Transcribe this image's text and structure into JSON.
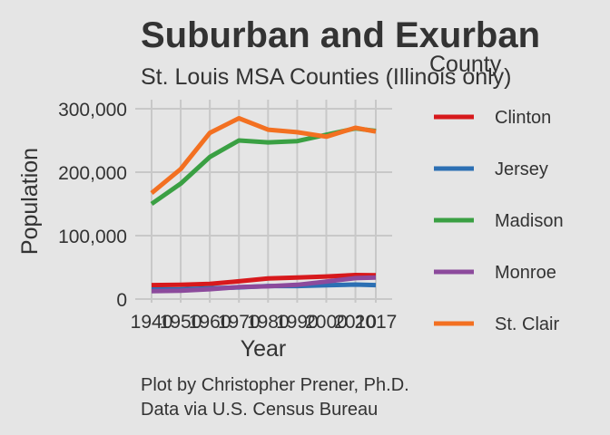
{
  "chart_data": {
    "type": "line",
    "title": "Suburban and Exurban",
    "subtitle": "St. Louis MSA Counties (Illinois only)",
    "xlabel": "Year",
    "ylabel": "Population",
    "x": [
      1940,
      1950,
      1960,
      1970,
      1980,
      1990,
      2000,
      2010,
      2017
    ],
    "x_tick_labels": [
      "1940",
      "1950",
      "1960",
      "1970",
      "1980",
      "1990",
      "2000",
      "2010",
      "2017"
    ],
    "y_ticks": [
      0,
      100000,
      200000,
      300000
    ],
    "y_tick_labels": [
      "0",
      "100,000",
      "200,000",
      "300,000"
    ],
    "ylim": [
      0,
      300000
    ],
    "grid": true,
    "legend": {
      "title": "County",
      "position": "right"
    },
    "series": [
      {
        "name": "Clinton",
        "color": "#d7191c",
        "values": [
          22000,
          22600,
          24000,
          28000,
          32600,
          34000,
          35500,
          37800,
          37600
        ]
      },
      {
        "name": "Jersey",
        "color": "#2c6fb3",
        "values": [
          15000,
          15300,
          17000,
          18500,
          20500,
          20500,
          21700,
          22900,
          22000
        ]
      },
      {
        "name": "Madison",
        "color": "#3aa043",
        "values": [
          150000,
          182000,
          224000,
          250000,
          247000,
          249000,
          259000,
          269000,
          265000
        ]
      },
      {
        "name": "Monroe",
        "color": "#8c4a9c",
        "values": [
          12500,
          13300,
          15500,
          18800,
          20100,
          22400,
          27600,
          33000,
          34000
        ]
      },
      {
        "name": "St. Clair",
        "color": "#f37021",
        "values": [
          167000,
          205000,
          262000,
          285000,
          267000,
          263000,
          256000,
          270000,
          264000
        ]
      }
    ],
    "caption": [
      "Plot by Christopher Prener, Ph.D.",
      "Data via U.S. Census Bureau"
    ]
  }
}
